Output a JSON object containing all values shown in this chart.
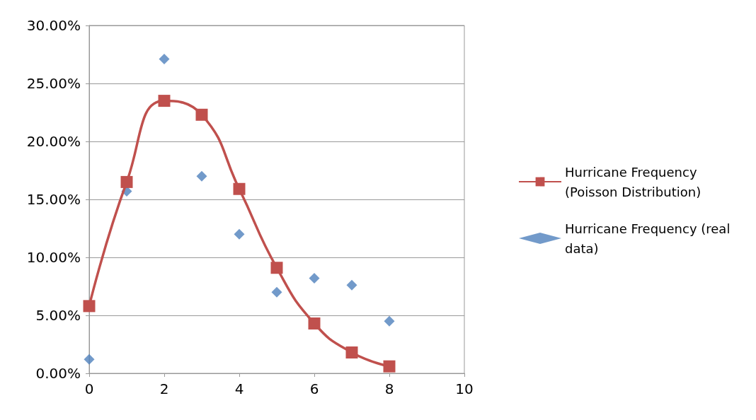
{
  "chart_data": {
    "type": "line",
    "series": [
      {
        "name": "Hurricane Frequency (Poisson Distribution)",
        "color": "#c0504d",
        "marker": "square",
        "x": [
          0,
          1,
          2,
          3,
          4,
          5,
          6,
          7,
          8
        ],
        "values": [
          5.8,
          16.5,
          23.5,
          22.3,
          15.9,
          9.1,
          4.3,
          1.8,
          0.6
        ]
      },
      {
        "name": "Hurricane Frequency (real data)",
        "type": "scatter",
        "color": "#4f81bd",
        "marker": "diamond",
        "x": [
          0,
          1,
          2,
          3,
          4,
          5,
          6,
          7,
          8
        ],
        "values": [
          1.2,
          15.7,
          27.1,
          17.0,
          12.0,
          7.0,
          8.2,
          7.6,
          4.5
        ]
      }
    ],
    "xlim": [
      0,
      10
    ],
    "xticks": [
      0,
      2,
      4,
      6,
      8,
      10
    ],
    "ylim": [
      0,
      30
    ],
    "yticks": [
      {
        "value": 0,
        "label": "0.00%"
      },
      {
        "value": 5,
        "label": "5.00%"
      },
      {
        "value": 10,
        "label": "10.00%"
      },
      {
        "value": 15,
        "label": "15.00%"
      },
      {
        "value": 20,
        "label": "20.00%"
      },
      {
        "value": 25,
        "label": "25.00%"
      },
      {
        "value": 30,
        "label": "30.00%"
      }
    ],
    "grid": "y",
    "legend": "right"
  }
}
